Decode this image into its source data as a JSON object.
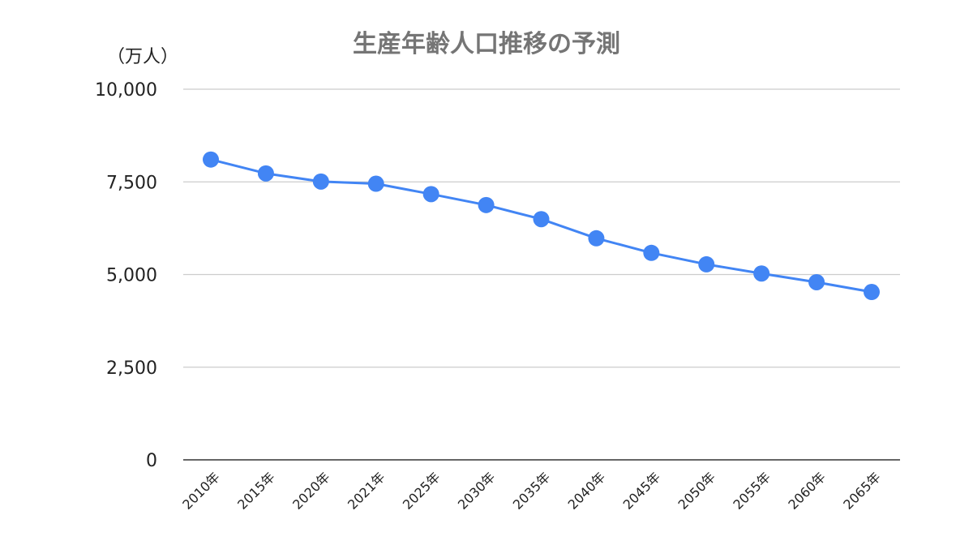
{
  "chart_data": {
    "type": "line",
    "title": "生産年齢人口推移の予測",
    "unit_label": "（万人）",
    "xlabel": "",
    "ylabel": "",
    "categories": [
      "2010年",
      "2015年",
      "2020年",
      "2021年",
      "2025年",
      "2030年",
      "2035年",
      "2040年",
      "2045年",
      "2050年",
      "2055年",
      "2060年",
      "2065年"
    ],
    "series": [
      {
        "values": [
          8103,
          7728,
          7509,
          7450,
          7170,
          6875,
          6494,
          5978,
          5584,
          5275,
          5028,
          4793,
          4529
        ]
      }
    ],
    "ylim": [
      0,
      10000
    ],
    "yticks": [
      0,
      2500,
      5000,
      7500,
      10000
    ],
    "ytick_labels": [
      "0",
      "2,500",
      "5,000",
      "7,500",
      "10,000"
    ],
    "grid": true,
    "legend": "none",
    "colors": {
      "line": "#4285f4",
      "grid": "#cccccc",
      "axis": "#333333",
      "title": "#757575"
    }
  }
}
